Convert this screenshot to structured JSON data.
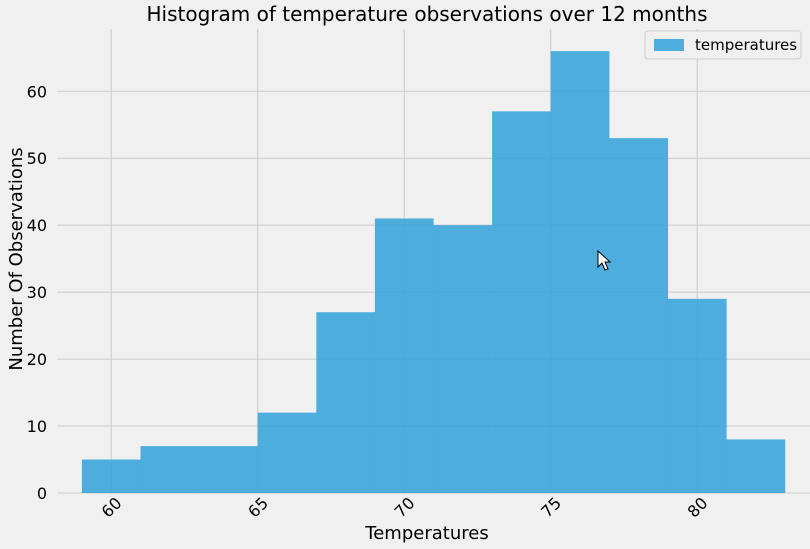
{
  "chart_data": {
    "type": "bar",
    "title": "Histogram of temperature observations over 12 months",
    "xlabel": "Temperatures",
    "ylabel": "Number Of Observations",
    "xlim": [
      58.15,
      83.85
    ],
    "ylim": [
      0,
      69.3
    ],
    "x_ticks": [
      60,
      65,
      70,
      75,
      80
    ],
    "y_ticks": [
      0,
      10,
      20,
      30,
      40,
      50,
      60
    ],
    "bin_edges": [
      59,
      61,
      63,
      65,
      67,
      69,
      71,
      73,
      75,
      77,
      79,
      81,
      83
    ],
    "series": [
      {
        "name": "temperatures",
        "values": [
          5,
          7,
          7,
          12,
          27,
          41,
          40,
          57,
          66,
          53,
          29,
          8
        ],
        "color": "#30a2da"
      }
    ],
    "grid": true,
    "legend_position": "top-right"
  }
}
